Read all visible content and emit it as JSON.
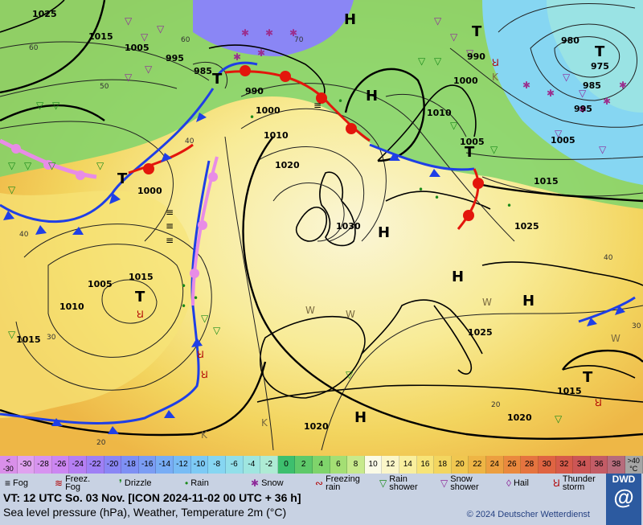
{
  "map": {
    "pressure_labels": [
      "1025",
      "1015",
      "1005",
      "995",
      "985",
      "990",
      "1000",
      "1010",
      "1020",
      "1030",
      "1000",
      "1005",
      "1010",
      "1015",
      "980",
      "975",
      "985",
      "995",
      "1005",
      "1015",
      "1025",
      "1025",
      "1020",
      "1020",
      "1015",
      "1000",
      "1010",
      "990",
      "1005",
      "1015"
    ],
    "high_pressure_symbol": "H",
    "low_pressure_symbol": "T",
    "temperature_labels": [
      "60",
      "50",
      "40",
      "30",
      "20",
      "40",
      "30",
      "20",
      "70",
      "60",
      "40"
    ],
    "colors": {
      "cold_front": "#1f3fe6",
      "warm_front": "#e3160c",
      "occlusion": "#e88ce6",
      "isobar": "#202020",
      "high_isobar": "#000000"
    }
  },
  "legend": {
    "scale": [
      {
        "label": "<\n-30",
        "color": "#d98fe9"
      },
      {
        "label": "-30",
        "color": "#e0a2ef"
      },
      {
        "label": "-28",
        "color": "#d793f0"
      },
      {
        "label": "-26",
        "color": "#cc86f2"
      },
      {
        "label": "-24",
        "color": "#b57ff3"
      },
      {
        "label": "-22",
        "color": "#9f80f5"
      },
      {
        "label": "-20",
        "color": "#8a86f5"
      },
      {
        "label": "-18",
        "color": "#7e90f4"
      },
      {
        "label": "-16",
        "color": "#7b9df4"
      },
      {
        "label": "-14",
        "color": "#78adf5"
      },
      {
        "label": "-12",
        "color": "#78bcf5"
      },
      {
        "label": "-10",
        "color": "#7dcaf5"
      },
      {
        "label": "-8",
        "color": "#86d6f2"
      },
      {
        "label": "-6",
        "color": "#92dfea"
      },
      {
        "label": "-4",
        "color": "#9fe6e0"
      },
      {
        "label": "-2",
        "color": "#aeebd4"
      },
      {
        "label": "0",
        "color": "#3dbf6e"
      },
      {
        "label": "2",
        "color": "#5ec96a"
      },
      {
        "label": "4",
        "color": "#7fd46b"
      },
      {
        "label": "6",
        "color": "#a4df74"
      },
      {
        "label": "8",
        "color": "#c8ea8c"
      },
      {
        "label": "10",
        "color": "#fbfbe6"
      },
      {
        "label": "12",
        "color": "#fbf6c8"
      },
      {
        "label": "14",
        "color": "#f9ef9e"
      },
      {
        "label": "16",
        "color": "#f7e478"
      },
      {
        "label": "18",
        "color": "#f3d660"
      },
      {
        "label": "20",
        "color": "#f0c750"
      },
      {
        "label": "22",
        "color": "#eeb545"
      },
      {
        "label": "24",
        "color": "#ec9f40"
      },
      {
        "label": "26",
        "color": "#ea893e"
      },
      {
        "label": "28",
        "color": "#e5743f"
      },
      {
        "label": "30",
        "color": "#df6442"
      },
      {
        "label": "32",
        "color": "#d65a4a"
      },
      {
        "label": "34",
        "color": "#cc5656"
      },
      {
        "label": "36",
        "color": "#c35c66"
      },
      {
        "label": "38",
        "color": "#b66c7c"
      },
      {
        "label": ">40\n°C",
        "color": "#a5a5a5"
      }
    ],
    "symbols": [
      {
        "icon": "fog-icon",
        "label": "Fog"
      },
      {
        "icon": "freezing-fog-icon",
        "label": "Freez.\nFog"
      },
      {
        "icon": "drizzle-icon",
        "label": "Drizzle"
      },
      {
        "icon": "rain-icon",
        "label": "Rain"
      },
      {
        "icon": "snow-icon",
        "label": "Snow"
      },
      {
        "icon": "freezing-rain-icon",
        "label": "Freezing\nrain"
      },
      {
        "icon": "rain-shower-icon",
        "label": "Rain\nshower"
      },
      {
        "icon": "snow-shower-icon",
        "label": "Snow\nshower"
      },
      {
        "icon": "hail-icon",
        "label": "Hail"
      },
      {
        "icon": "thunderstorm-icon",
        "label": "Thunder\nstorm"
      }
    ],
    "valid_time": "VT: 12 UTC So.  03 Nov. [ICON 2024-11-02  00 UTC + 36 h]",
    "description": "Sea level pressure (hPa), Weather, Temperature 2m (°C)",
    "copyright": "© 2024 Deutscher Wetterdienst",
    "logo_text": "DWD"
  }
}
